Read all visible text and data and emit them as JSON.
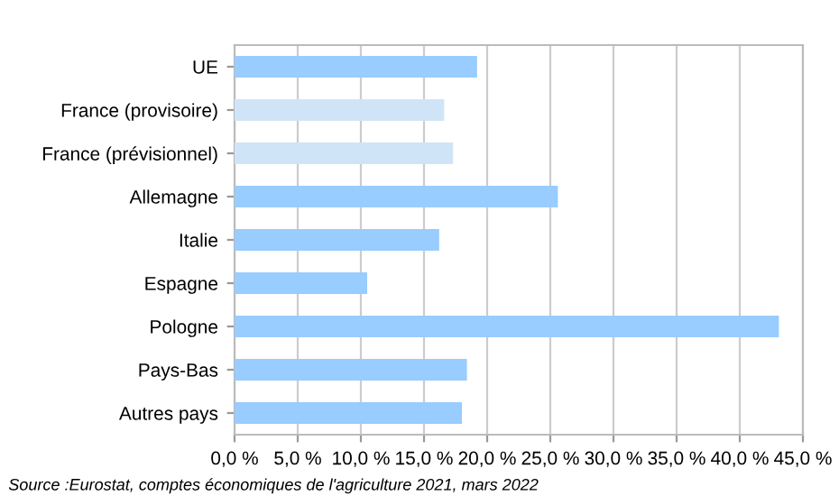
{
  "chart_data": {
    "type": "bar",
    "orientation": "horizontal",
    "categories": [
      "UE",
      "France (provisoire)",
      "France (prévisionnel)",
      "Allemagne",
      "Italie",
      "Espagne",
      "Pologne",
      "Pays-Bas",
      "Autres pays"
    ],
    "values": [
      19.2,
      16.6,
      17.3,
      25.6,
      16.2,
      10.5,
      43.1,
      18.4,
      18.0
    ],
    "colors": [
      "#99ccff",
      "#cfe5f7",
      "#cfe5f7",
      "#99ccff",
      "#99ccff",
      "#99ccff",
      "#99ccff",
      "#99ccff",
      "#99ccff"
    ],
    "xlim": [
      0,
      45
    ],
    "xticks": [
      {
        "value": 0,
        "label": "0,0 %"
      },
      {
        "value": 5,
        "label": "5,0 %"
      },
      {
        "value": 10,
        "label": "10,0 %"
      },
      {
        "value": 15,
        "label": "15,0 %"
      },
      {
        "value": 20,
        "label": "20,0 %"
      },
      {
        "value": 25,
        "label": "25,0 %"
      },
      {
        "value": 30,
        "label": "30,0 %"
      },
      {
        "value": 35,
        "label": "35,0 %"
      },
      {
        "value": 40,
        "label": "40,0 %"
      },
      {
        "value": 45,
        "label": "45,0 %"
      }
    ],
    "grid": "x",
    "annotations": [
      "Source :Eurostat, comptes économiques de l'agriculture 2021, mars 2022"
    ]
  }
}
